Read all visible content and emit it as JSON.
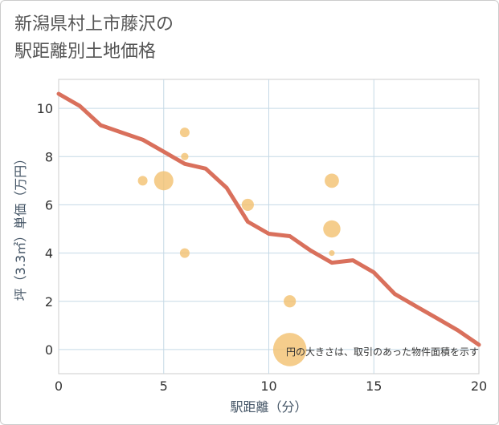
{
  "title_lines": [
    "新潟県村上市藤沢の",
    "駅距離別土地価格"
  ],
  "chart_data": {
    "type": "scatter",
    "title": "新潟県村上市藤沢の駅距離別土地価格",
    "xlabel": "駅距離（分）",
    "ylabel": "坪（3.3㎡）単価（万円）",
    "xlim": [
      0,
      20
    ],
    "ylim": [
      -1,
      11.2
    ],
    "xticks": [
      0,
      5,
      10,
      15,
      20
    ],
    "yticks": [
      0,
      2,
      4,
      6,
      8,
      10
    ],
    "grid": true,
    "annotation": "円の大きさは、取引のあった物件面積を示す",
    "scatter_color": "#f3c06f",
    "line_color": "#d9705c",
    "points": [
      {
        "x": 4,
        "y": 7.0,
        "size": 1
      },
      {
        "x": 5,
        "y": 7.0,
        "size": 4
      },
      {
        "x": 6,
        "y": 9.0,
        "size": 1
      },
      {
        "x": 6,
        "y": 8.0,
        "size": 0.6
      },
      {
        "x": 6,
        "y": 4.0,
        "size": 1
      },
      {
        "x": 9,
        "y": 6.0,
        "size": 1.6
      },
      {
        "x": 11,
        "y": 2.0,
        "size": 1.6
      },
      {
        "x": 11,
        "y": 0.0,
        "size": 12
      },
      {
        "x": 13,
        "y": 7.0,
        "size": 2.2
      },
      {
        "x": 13,
        "y": 5.0,
        "size": 3.2
      },
      {
        "x": 13,
        "y": 4.0,
        "size": 0.35
      }
    ],
    "trend_line": {
      "x": [
        0,
        1,
        2,
        3,
        4,
        5,
        6,
        7,
        8,
        9,
        10,
        11,
        12,
        13,
        14,
        15,
        16,
        17,
        18,
        19,
        20
      ],
      "y": [
        10.6,
        10.1,
        9.3,
        9.0,
        8.7,
        8.2,
        7.7,
        7.5,
        6.7,
        5.3,
        4.8,
        4.7,
        4.1,
        3.6,
        3.7,
        3.2,
        2.3,
        1.8,
        1.3,
        0.8,
        0.2
      ]
    }
  }
}
